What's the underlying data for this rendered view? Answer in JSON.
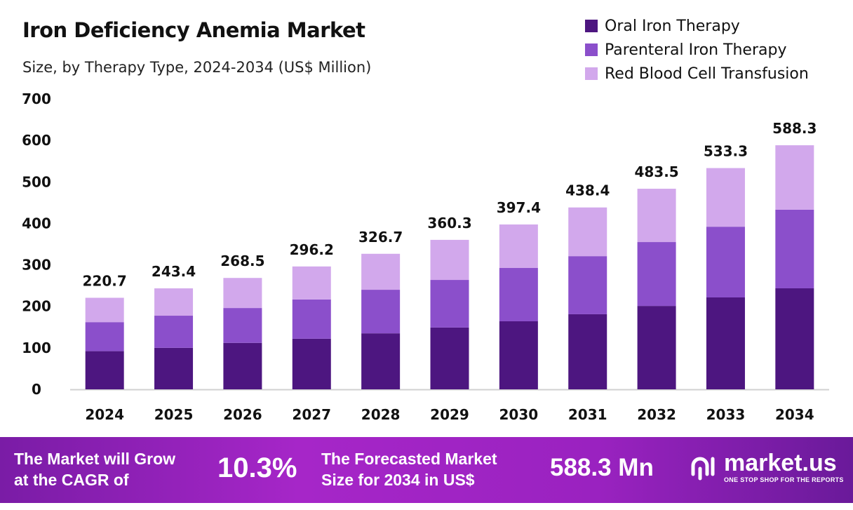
{
  "chart_data": {
    "type": "bar",
    "stacked": true,
    "title": "Iron Deficiency Anemia Market",
    "subtitle": "Size, by Therapy Type, 2024-2034 (US$ Million)",
    "categories": [
      "2024",
      "2025",
      "2026",
      "2027",
      "2028",
      "2029",
      "2030",
      "2031",
      "2032",
      "2033",
      "2034"
    ],
    "series": [
      {
        "name": "Oral Iron Therapy",
        "color": "#4d1680",
        "values": [
          92,
          100,
          112,
          122,
          135,
          149,
          164,
          181,
          201,
          221.5,
          243.5
        ]
      },
      {
        "name": "Parenteral Iron Therapy",
        "color": "#8b4fcb",
        "values": [
          70,
          77.5,
          84,
          94.6,
          105,
          114.7,
          128.5,
          140,
          154,
          170.5,
          189.5
        ]
      },
      {
        "name": "Red Blood Cell Transfusion",
        "color": "#d2a8ec",
        "values": [
          58.7,
          65.9,
          72.5,
          79.6,
          86.7,
          96.6,
          104.9,
          117.4,
          128.5,
          141.3,
          155.3
        ]
      }
    ],
    "totals": [
      "220.7",
      "243.4",
      "268.5",
      "296.2",
      "326.7",
      "360.3",
      "397.4",
      "438.4",
      "483.5",
      "533.3",
      "588.3"
    ],
    "yticks": [
      "0",
      "100",
      "200",
      "300",
      "400",
      "500",
      "600",
      "700"
    ],
    "ylim": [
      0,
      700
    ],
    "grid": false,
    "legend": "top-right",
    "xlabel": "",
    "ylabel": ""
  },
  "banner": {
    "cagr_label_1": "The Market will Grow",
    "cagr_label_2": "at the CAGR of",
    "cagr_value": "10.3%",
    "forecast_label_1": "The Forecasted Market",
    "forecast_label_2": "Size for 2034 in US$",
    "forecast_value": "588.3 Mn",
    "brand": "market.us",
    "tagline": "ONE STOP SHOP FOR THE REPORTS"
  }
}
